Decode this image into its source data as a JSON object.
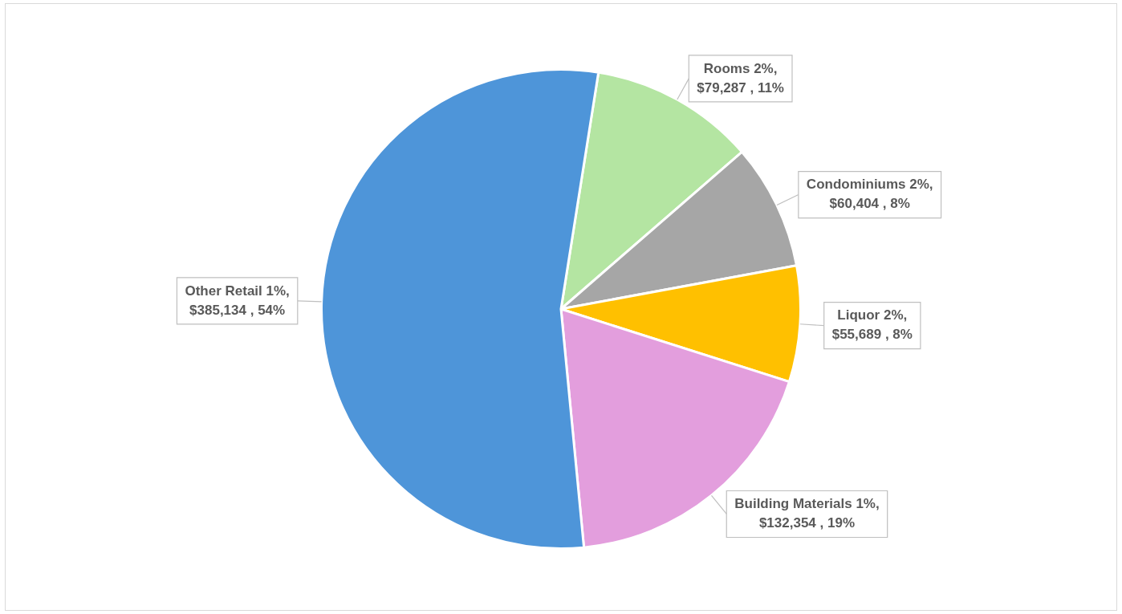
{
  "chart_data": {
    "type": "pie",
    "categories": [
      "Rooms 2%",
      "Condominiums 2%",
      "Liquor 2%",
      "Building Materials 1%",
      "Other Retail 1%"
    ],
    "values": [
      79287,
      60404,
      55689,
      132354,
      385134
    ],
    "value_labels": [
      ", $79,287 , 11%",
      ", $60,404 , 8%",
      ", $55,689 , 8%",
      ", $132,354 , 19%",
      ", $385,134 , 54%"
    ],
    "colors": [
      "#b4e5a2",
      "#a6a6a6",
      "#ffc000",
      "#e39edd",
      "#4e95d9"
    ],
    "legend": false
  }
}
